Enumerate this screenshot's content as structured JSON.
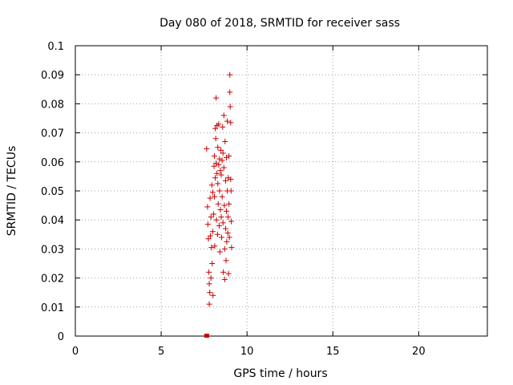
{
  "chart_data": {
    "type": "scatter",
    "title": "Day 080 of 2018, SRMTID for receiver sass",
    "xlabel": "GPS time / hours",
    "ylabel": "SRMTID / TECUs",
    "xlim": [
      0,
      24
    ],
    "ylim": [
      0,
      0.1
    ],
    "xticks": [
      0,
      5,
      10,
      15,
      20
    ],
    "xtick_labels": [
      "0",
      "5",
      "10",
      "15",
      "20"
    ],
    "yticks": [
      0,
      0.01,
      0.02,
      0.03,
      0.04,
      0.05,
      0.06,
      0.07,
      0.08,
      0.09,
      0.1
    ],
    "ytick_labels": [
      "0",
      "0.01",
      "0.02",
      "0.03",
      "0.04",
      "0.05",
      "0.06",
      "0.07",
      "0.08",
      "0.09",
      "0.1"
    ],
    "grid": true,
    "marker": "plus",
    "color": "#cc0000",
    "series": [
      {
        "name": "SRMTID",
        "points": [
          [
            7.65,
            0.0645
          ],
          [
            7.7,
            0.0445
          ],
          [
            7.72,
            0.0385
          ],
          [
            7.75,
            0.0335
          ],
          [
            7.78,
            0.022
          ],
          [
            7.8,
            0.018
          ],
          [
            7.8,
            0.011
          ],
          [
            7.83,
            0.015
          ],
          [
            7.85,
            0.0475
          ],
          [
            7.87,
            0.0345
          ],
          [
            7.9,
            0.041
          ],
          [
            7.9,
            0.02
          ],
          [
            7.93,
            0.0305
          ],
          [
            7.95,
            0.052
          ],
          [
            7.97,
            0.025
          ],
          [
            8.0,
            0.0495
          ],
          [
            8.0,
            0.036
          ],
          [
            8.02,
            0.014
          ],
          [
            8.05,
            0.042
          ],
          [
            8.08,
            0.0585
          ],
          [
            8.1,
            0.062
          ],
          [
            8.1,
            0.048
          ],
          [
            8.12,
            0.031
          ],
          [
            8.15,
            0.0715
          ],
          [
            8.15,
            0.0545
          ],
          [
            8.18,
            0.068
          ],
          [
            8.2,
            0.082
          ],
          [
            8.2,
            0.0595
          ],
          [
            8.22,
            0.04
          ],
          [
            8.25,
            0.0725
          ],
          [
            8.25,
            0.056
          ],
          [
            8.28,
            0.035
          ],
          [
            8.3,
            0.065
          ],
          [
            8.3,
            0.0525
          ],
          [
            8.32,
            0.0455
          ],
          [
            8.35,
            0.073
          ],
          [
            8.35,
            0.059
          ],
          [
            8.38,
            0.038
          ],
          [
            8.4,
            0.061
          ],
          [
            8.4,
            0.05
          ],
          [
            8.42,
            0.029
          ],
          [
            8.45,
            0.057
          ],
          [
            8.45,
            0.0435
          ],
          [
            8.48,
            0.064
          ],
          [
            8.5,
            0.0555
          ],
          [
            8.5,
            0.041
          ],
          [
            8.52,
            0.034
          ],
          [
            8.55,
            0.0605
          ],
          [
            8.55,
            0.048
          ],
          [
            8.58,
            0.072
          ],
          [
            8.6,
            0.063
          ],
          [
            8.6,
            0.039
          ],
          [
            8.62,
            0.022
          ],
          [
            8.65,
            0.076
          ],
          [
            8.65,
            0.058
          ],
          [
            8.68,
            0.045
          ],
          [
            8.7,
            0.03
          ],
          [
            8.7,
            0.0195
          ],
          [
            8.72,
            0.067
          ],
          [
            8.75,
            0.0535
          ],
          [
            8.75,
            0.037
          ],
          [
            8.78,
            0.026
          ],
          [
            8.8,
            0.0615
          ],
          [
            8.8,
            0.043
          ],
          [
            8.82,
            0.0325
          ],
          [
            8.85,
            0.074
          ],
          [
            8.85,
            0.05
          ],
          [
            8.88,
            0.0355
          ],
          [
            8.9,
            0.0545
          ],
          [
            8.9,
            0.041
          ],
          [
            8.92,
            0.0215
          ],
          [
            8.95,
            0.062
          ],
          [
            8.95,
            0.0455
          ],
          [
            8.97,
            0.034
          ],
          [
            9.0,
            0.09
          ],
          [
            9.0,
            0.084
          ],
          [
            9.02,
            0.079
          ],
          [
            9.05,
            0.0735
          ],
          [
            9.05,
            0.054
          ],
          [
            9.07,
            0.05
          ],
          [
            9.08,
            0.0395
          ],
          [
            9.1,
            0.0305
          ]
        ]
      }
    ],
    "extra_marks": [
      {
        "x": 7.65,
        "y": 0.0,
        "shape": "square"
      }
    ]
  }
}
